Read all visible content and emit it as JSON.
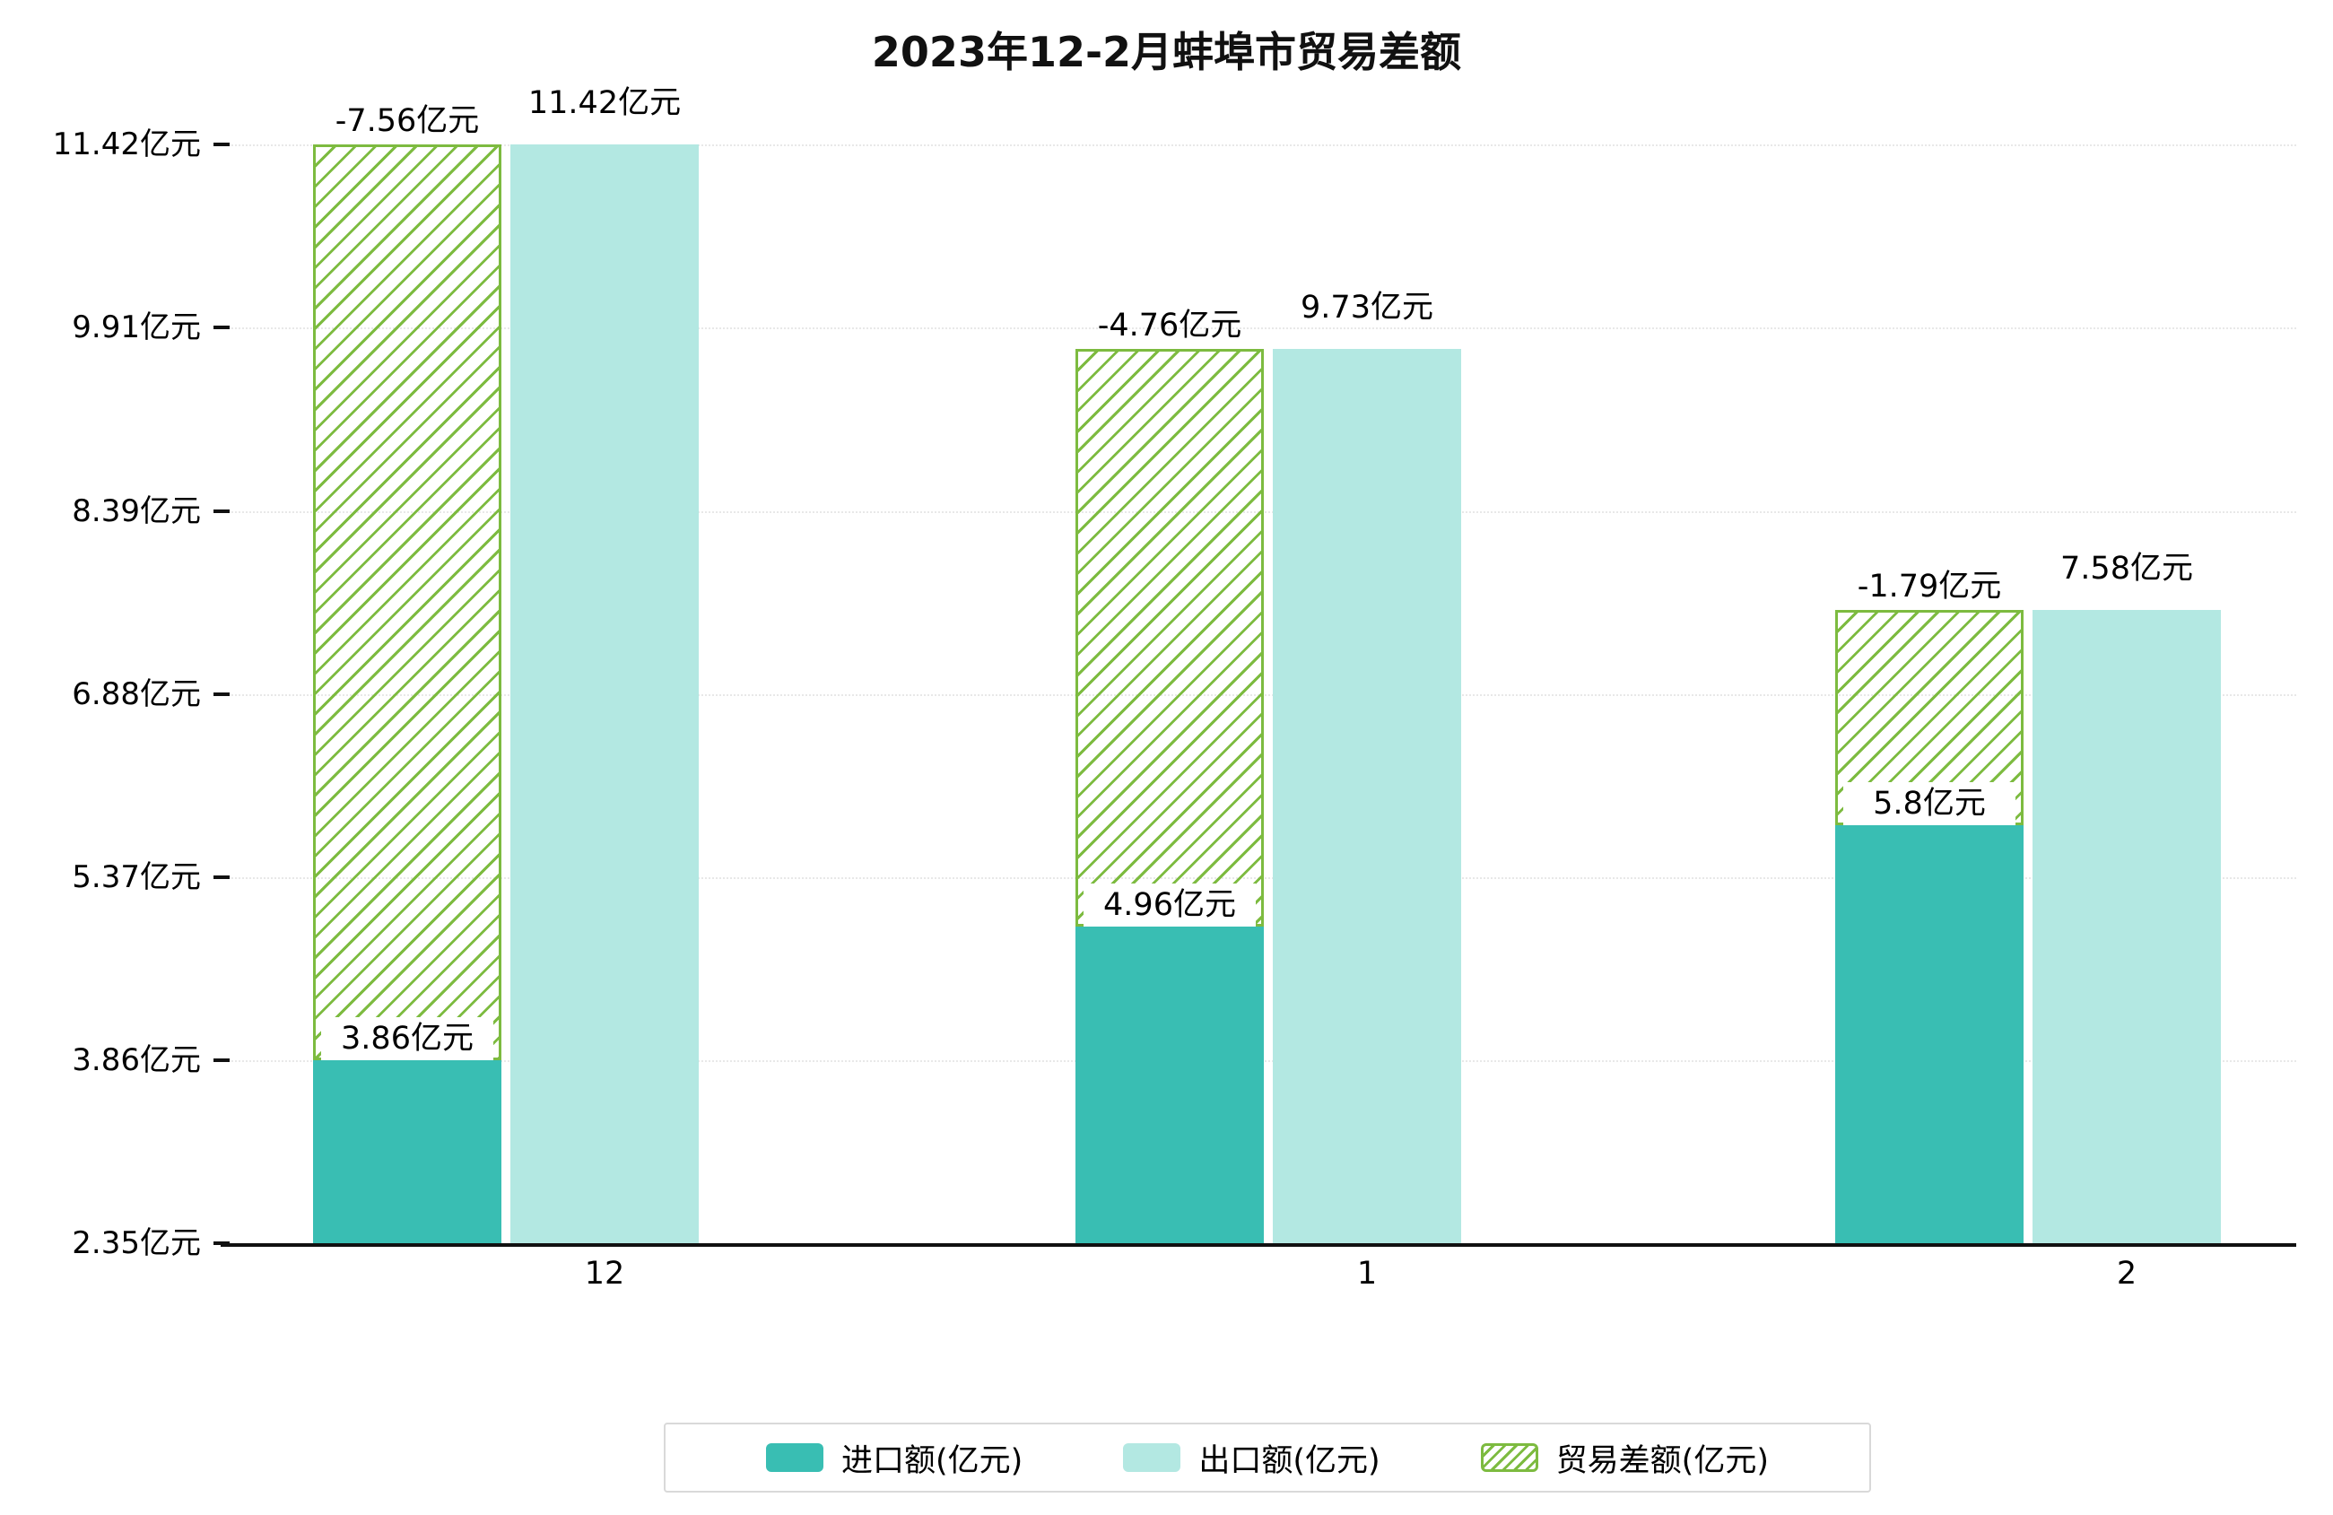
{
  "chart_data": {
    "type": "bar",
    "title": "2023年12-2月蚌埠市贸易差额",
    "categories": [
      "12",
      "1",
      "2"
    ],
    "series": [
      {
        "name": "进口额(亿元)",
        "values": [
          3.86,
          4.96,
          5.8
        ],
        "labels": [
          "3.86亿元",
          "4.96亿元",
          "5.8亿元"
        ],
        "style": "solid"
      },
      {
        "name": "出口额(亿元)",
        "values": [
          11.42,
          9.73,
          7.58
        ],
        "labels": [
          "11.42亿元",
          "9.73亿元",
          "7.58亿元"
        ],
        "style": "solid"
      },
      {
        "name": "贸易差额(亿元)",
        "values": [
          -7.56,
          -4.76,
          -1.79
        ],
        "labels": [
          "-7.56亿元",
          "-4.76亿元",
          "-1.79亿元"
        ],
        "style": "hatched",
        "render": "difference-span-from-import-to-export"
      }
    ],
    "y_axis": {
      "unit": "亿元",
      "ylim": [
        2.35,
        11.42
      ],
      "tick_values": [
        2.35,
        3.86,
        5.37,
        6.88,
        8.39,
        9.91,
        11.42
      ],
      "tick_labels": [
        "2.35亿元",
        "3.86亿元",
        "5.37亿元",
        "6.88亿元",
        "8.39亿元",
        "9.91亿元",
        "11.42亿元"
      ]
    },
    "legend": [
      "进口额(亿元)",
      "出口额(亿元)",
      "贸易差额(亿元)"
    ],
    "legend_position": "bottom",
    "grid": true,
    "colors": {
      "import": "#39beb3",
      "export": "#b3e8e2",
      "diff": "#7dbb40",
      "axis": "#111111",
      "grid": "#e8e8e8"
    }
  }
}
